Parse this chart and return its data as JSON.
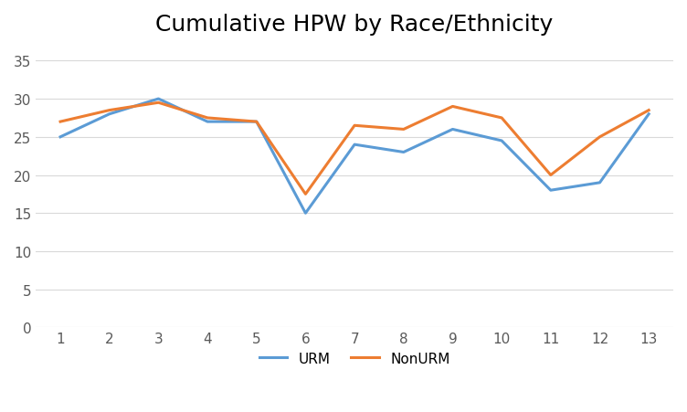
{
  "title": "Cumulative HPW by Race/Ethnicity",
  "x": [
    1,
    2,
    3,
    4,
    5,
    6,
    7,
    8,
    9,
    10,
    11,
    12,
    13
  ],
  "urm": [
    25,
    28,
    30,
    27,
    27,
    15,
    24,
    23,
    26,
    24.5,
    18,
    19,
    28
  ],
  "nonurm": [
    27,
    28.5,
    29.5,
    27.5,
    27,
    17.5,
    26.5,
    26,
    29,
    27.5,
    20,
    25,
    28.5
  ],
  "urm_color": "#5B9BD5",
  "nonurm_color": "#ED7D31",
  "urm_label": "URM",
  "nonurm_label": "NonURM",
  "ylim": [
    0,
    37
  ],
  "yticks": [
    0,
    5,
    10,
    15,
    20,
    25,
    30,
    35
  ],
  "xticks": [
    1,
    2,
    3,
    4,
    5,
    6,
    7,
    8,
    9,
    10,
    11,
    12,
    13
  ],
  "background_color": "#FFFFFF",
  "plot_bg_color": "#FFFFFF",
  "grid_color": "#D9D9D9",
  "linewidth": 2.2,
  "title_fontsize": 18,
  "tick_fontsize": 11,
  "legend_fontsize": 11
}
